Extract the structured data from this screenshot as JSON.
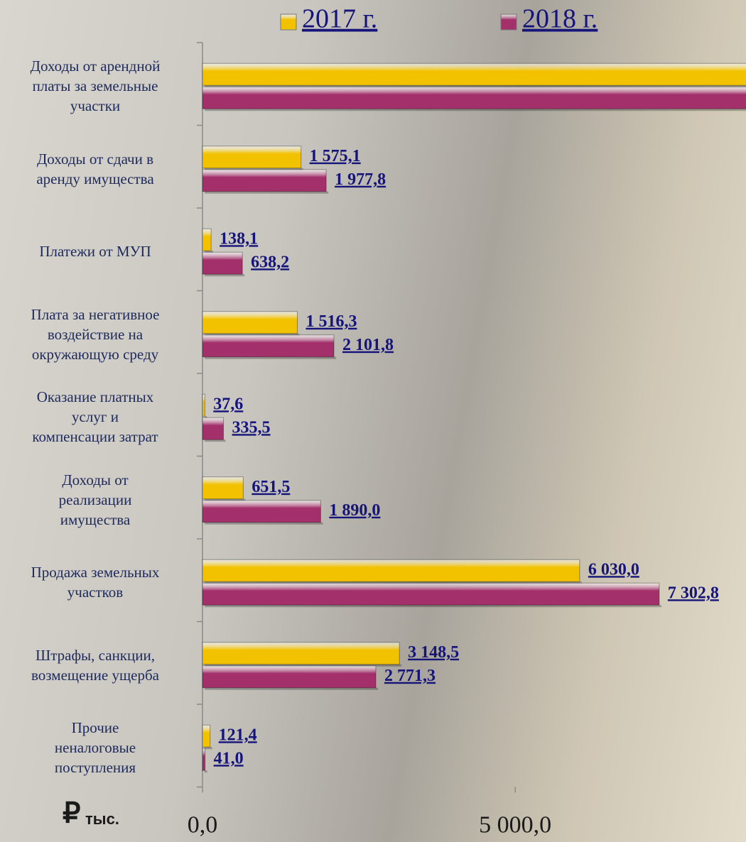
{
  "chart_data": {
    "type": "bar",
    "orientation": "horizontal",
    "categories": [
      "Доходы от арендной\nплаты за земельные\nучастки",
      "Доходы от сдачи в\nаренду имущества",
      "Платежи от МУП",
      "Плата за негативное\nвоздействие на\nокружающую среду",
      "Оказание платных\nуслуг и\nкомпенсации затрат",
      "Доходы от\nреализации\nимущества",
      "Продажа земельных\nучастков",
      "Штрафы, санкции,\nвозмещение ущерба",
      "Прочие\nненалоговые\nпоступления"
    ],
    "series": [
      {
        "name": "2017 г.",
        "color": "#f2c200",
        "values": [
          9000,
          1575.1,
          138.1,
          1516.3,
          37.6,
          651.5,
          6030.0,
          3148.5,
          121.4
        ],
        "value_labels": [
          null,
          "1 575,1",
          "138,1",
          "1 516,3",
          "37,6",
          "651,5",
          "6 030,0",
          "3 148,5",
          "121,4"
        ]
      },
      {
        "name": "2018 г.",
        "color": "#a3306b",
        "values": [
          9000,
          1977.8,
          638.2,
          2101.8,
          335.5,
          1890.0,
          7302.8,
          2771.3,
          41.0
        ],
        "value_labels": [
          null,
          "1 977,8",
          "638,2",
          "2 101,8",
          "335,5",
          "1 890,0",
          "7 302,8",
          "2 771,3",
          "41,0"
        ]
      }
    ],
    "xlim": [
      0,
      8690
    ],
    "xticks": [
      {
        "value": 0,
        "label": "0,0"
      },
      {
        "value": 5000,
        "label": "5 000,0"
      }
    ],
    "currency": "₽",
    "unit": "тыс.",
    "legend": "top"
  }
}
